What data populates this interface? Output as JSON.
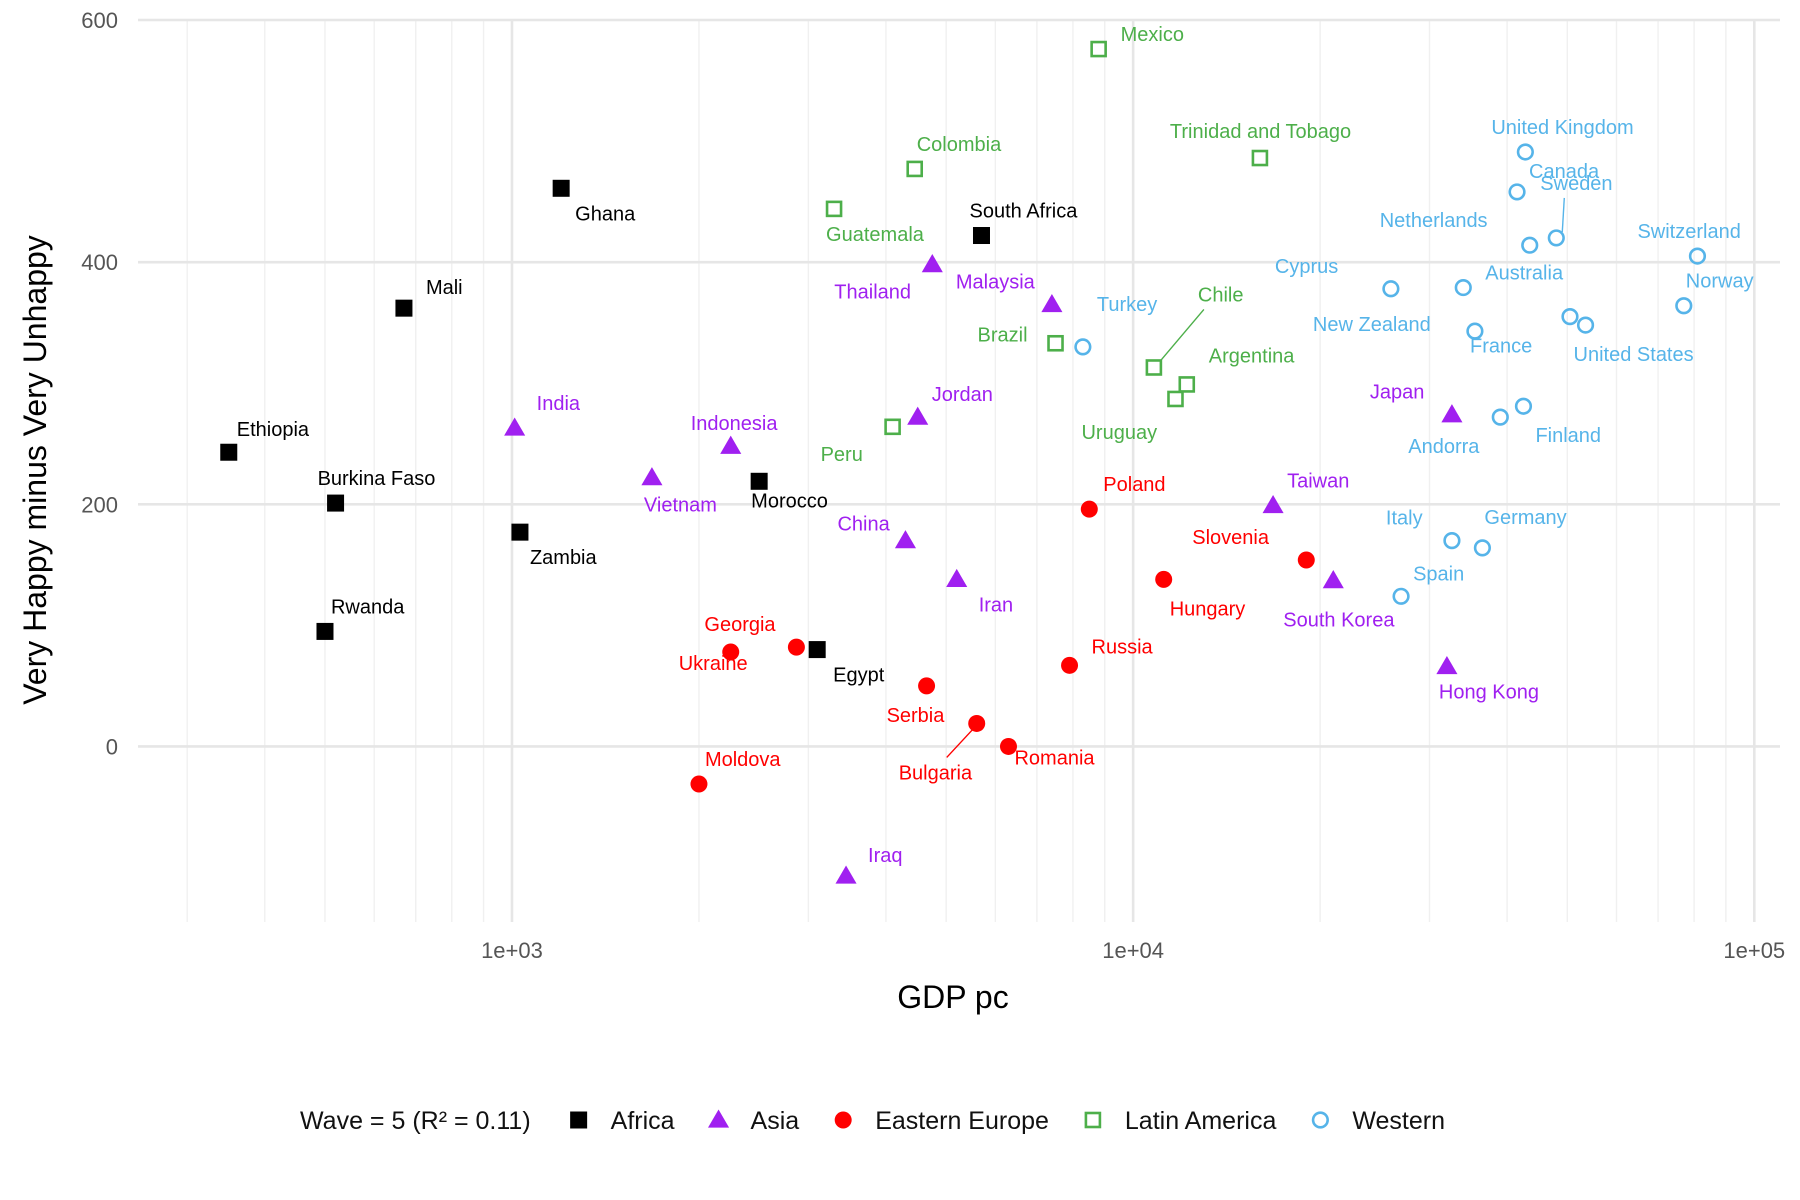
{
  "chart_data": {
    "type": "scatter",
    "xlabel": "GDP pc",
    "ylabel": "Very Happy minus Very Unhappy",
    "x_scale": "log10",
    "xlim": [
      250,
      110000
    ],
    "ylim": [
      -145,
      600
    ],
    "x_ticks": [
      1000,
      10000,
      100000
    ],
    "x_tick_labels": [
      "1e+03",
      "1e+04",
      "1e+05"
    ],
    "y_ticks": [
      0,
      200,
      400,
      600
    ],
    "y_tick_labels": [
      "0",
      "200",
      "400",
      "600"
    ],
    "legend": {
      "title": "Wave = 5 (R² = 0.11)",
      "position": "bottom"
    },
    "series": [
      {
        "name": "Africa",
        "color": "#000000",
        "marker": "filled-square",
        "points": [
          {
            "label": "Ghana",
            "x": 1200,
            "y": 461
          },
          {
            "label": "Mali",
            "x": 670,
            "y": 362
          },
          {
            "label": "Ethiopia",
            "x": 350,
            "y": 243
          },
          {
            "label": "Burkina Faso",
            "x": 520,
            "y": 201
          },
          {
            "label": "Rwanda",
            "x": 500,
            "y": 95
          },
          {
            "label": "Zambia",
            "x": 1030,
            "y": 177
          },
          {
            "label": "Morocco",
            "x": 2500,
            "y": 219
          },
          {
            "label": "Egypt",
            "x": 3100,
            "y": 80
          },
          {
            "label": "South Africa",
            "x": 5700,
            "y": 422
          }
        ]
      },
      {
        "name": "Asia",
        "color": "#a020f0",
        "marker": "filled-triangle",
        "points": [
          {
            "label": "India",
            "x": 1010,
            "y": 263
          },
          {
            "label": "Vietnam",
            "x": 1680,
            "y": 222
          },
          {
            "label": "Indonesia",
            "x": 2250,
            "y": 248
          },
          {
            "label": "Iraq",
            "x": 3450,
            "y": -107
          },
          {
            "label": "China",
            "x": 4300,
            "y": 170
          },
          {
            "label": "Jordan",
            "x": 4500,
            "y": 272
          },
          {
            "label": "Thailand",
            "x": 4750,
            "y": 398
          },
          {
            "label": "Iran",
            "x": 5200,
            "y": 138
          },
          {
            "label": "Malaysia",
            "x": 7400,
            "y": 365
          },
          {
            "label": "Taiwan",
            "x": 16800,
            "y": 199
          },
          {
            "label": "South Korea",
            "x": 21000,
            "y": 137
          },
          {
            "label": "Japan",
            "x": 32600,
            "y": 274
          },
          {
            "label": "Hong Kong",
            "x": 32000,
            "y": 66
          }
        ]
      },
      {
        "name": "Eastern Europe",
        "color": "#ff0000",
        "marker": "filled-circle",
        "points": [
          {
            "label": "Moldova",
            "x": 2000,
            "y": -31
          },
          {
            "label": "Ukraine",
            "x": 2250,
            "y": 78
          },
          {
            "label": "Georgia",
            "x": 2870,
            "y": 82
          },
          {
            "label": "Serbia",
            "x": 4650,
            "y": 50
          },
          {
            "label": "Bulgaria",
            "x": 5600,
            "y": 19
          },
          {
            "label": "Romania",
            "x": 6300,
            "y": 0
          },
          {
            "label": "Russia",
            "x": 7900,
            "y": 67
          },
          {
            "label": "Poland",
            "x": 8500,
            "y": 196
          },
          {
            "label": "Hungary",
            "x": 11200,
            "y": 138
          },
          {
            "label": "Slovenia",
            "x": 19000,
            "y": 154
          }
        ]
      },
      {
        "name": "Latin America",
        "color": "#4daf4a",
        "marker": "open-square",
        "points": [
          {
            "label": "Guatemala",
            "x": 3300,
            "y": 444
          },
          {
            "label": "Colombia",
            "x": 4450,
            "y": 477
          },
          {
            "label": "Peru",
            "x": 4100,
            "y": 264
          },
          {
            "label": "Brazil",
            "x": 7500,
            "y": 333
          },
          {
            "label": "Mexico",
            "x": 8800,
            "y": 576
          },
          {
            "label": "Chile",
            "x": 10800,
            "y": 313
          },
          {
            "label": "Uruguay",
            "x": 11700,
            "y": 287
          },
          {
            "label": "Argentina",
            "x": 12200,
            "y": 299
          },
          {
            "label": "Trinidad and Tobago",
            "x": 16000,
            "y": 486
          }
        ]
      },
      {
        "name": "Western",
        "color": "#56b4e9",
        "marker": "open-circle",
        "points": [
          {
            "label": "Turkey",
            "x": 8300,
            "y": 330
          },
          {
            "label": "Cyprus",
            "x": 26000,
            "y": 378
          },
          {
            "label": "Spain",
            "x": 27000,
            "y": 124
          },
          {
            "label": "Italy",
            "x": 32600,
            "y": 170
          },
          {
            "label": "Australia",
            "x": 34000,
            "y": 379
          },
          {
            "label": "New Zealand",
            "x": 35500,
            "y": 343
          },
          {
            "label": "Germany",
            "x": 36500,
            "y": 164
          },
          {
            "label": "Andorra",
            "x": 39000,
            "y": 272
          },
          {
            "label": "Canada",
            "x": 41500,
            "y": 458
          },
          {
            "label": "Finland",
            "x": 42500,
            "y": 281
          },
          {
            "label": "United Kingdom",
            "x": 42800,
            "y": 491
          },
          {
            "label": "Netherlands",
            "x": 43500,
            "y": 414
          },
          {
            "label": "Sweden",
            "x": 48000,
            "y": 420
          },
          {
            "label": "France",
            "x": 50500,
            "y": 355
          },
          {
            "label": "United States",
            "x": 53500,
            "y": 348
          },
          {
            "label": "Norway",
            "x": 77000,
            "y": 364
          },
          {
            "label": "Switzerland",
            "x": 81000,
            "y": 405
          }
        ]
      }
    ]
  }
}
